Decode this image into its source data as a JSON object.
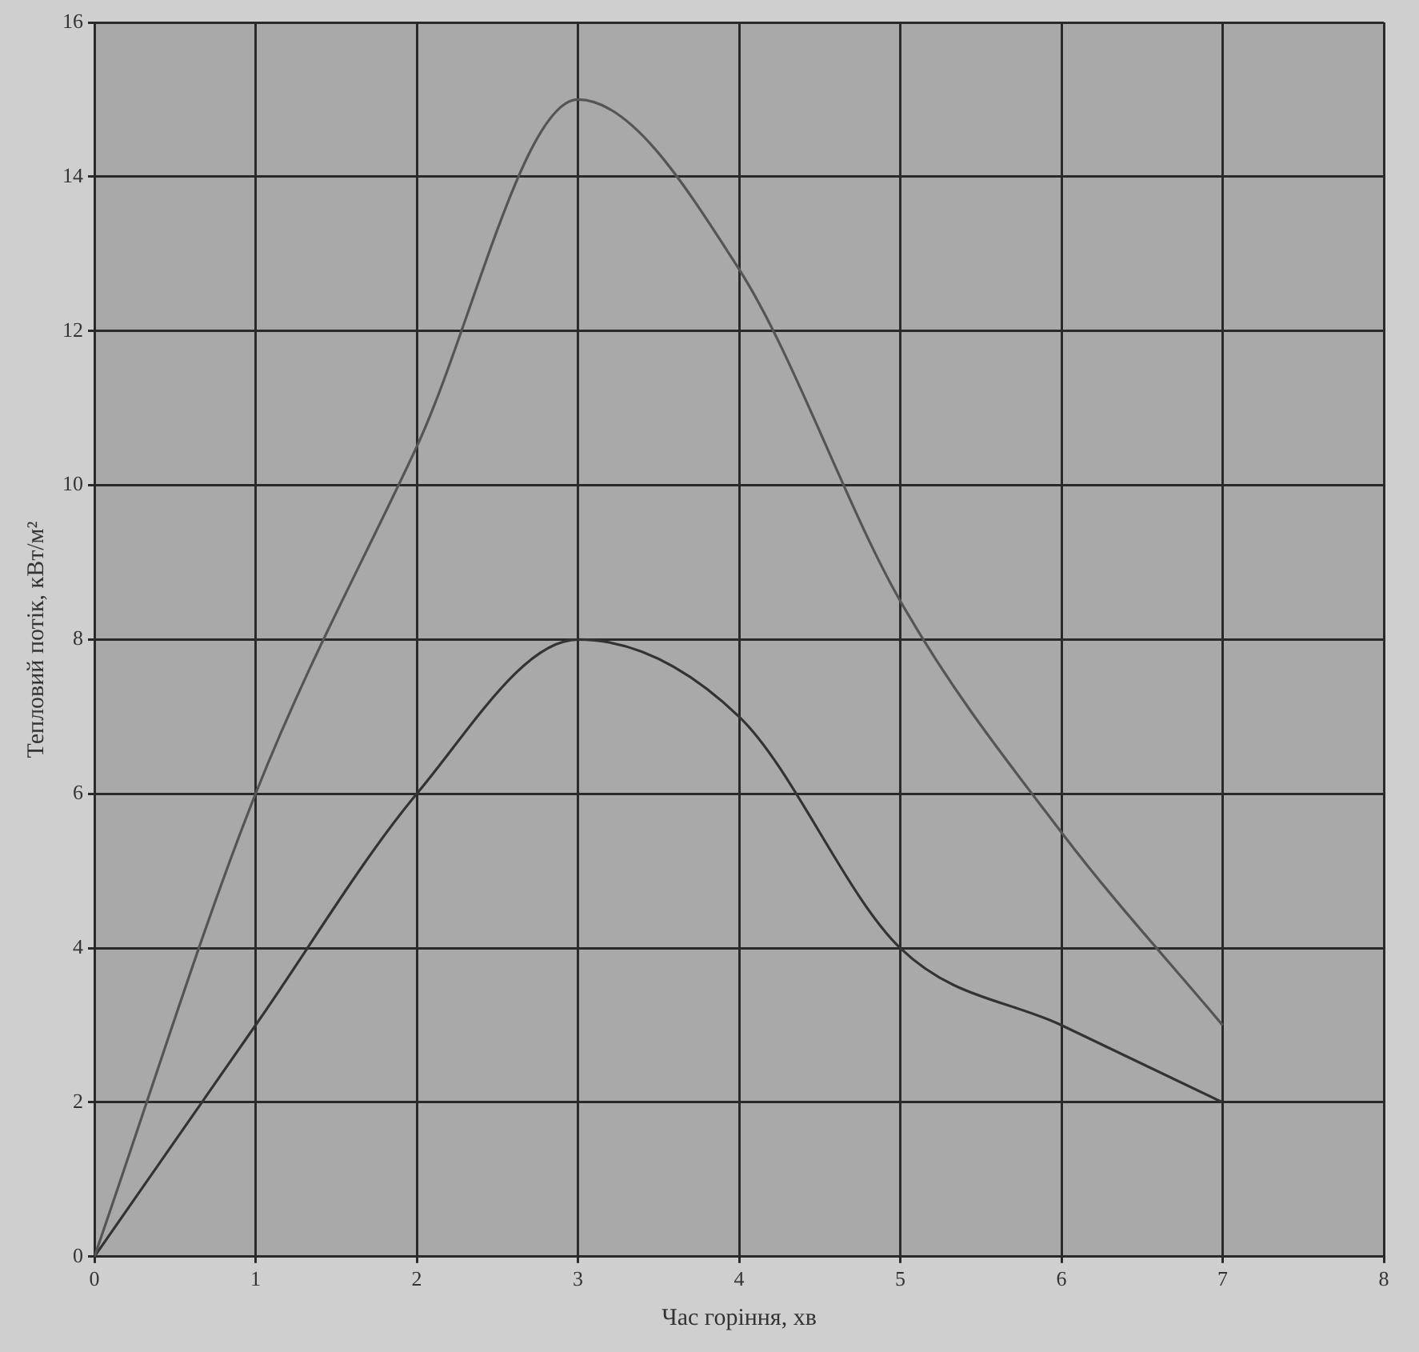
{
  "chart_data": {
    "type": "line",
    "xlabel": "Час горіння, хв",
    "ylabel": "Тепловий потік, кВт/м²",
    "x": [
      0,
      1,
      2,
      3,
      4,
      5,
      6,
      7
    ],
    "series": [
      {
        "color": "#555555",
        "values": [
          0,
          6,
          10.5,
          15,
          12.8,
          8.5,
          5.5,
          3
        ]
      },
      {
        "color": "#333333",
        "values": [
          0,
          3,
          6,
          8,
          7,
          4,
          3,
          2
        ]
      }
    ],
    "xlim": [
      0,
      8
    ],
    "xticks": [
      0,
      1,
      2,
      3,
      4,
      5,
      6,
      7,
      8
    ],
    "ylim": [
      0,
      16
    ],
    "yticks": [
      0,
      2,
      4,
      6,
      8,
      10,
      12,
      14,
      16
    ],
    "grid": true,
    "legend": false,
    "marker": "none",
    "line_style": "solid"
  }
}
